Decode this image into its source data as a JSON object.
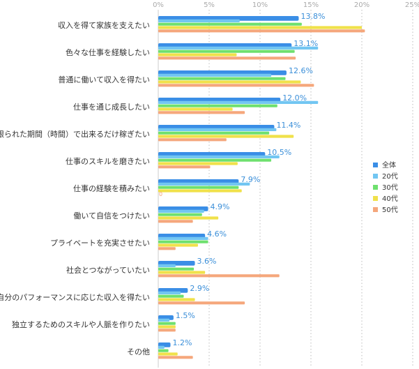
{
  "chart_data": {
    "type": "bar",
    "orientation": "horizontal",
    "xlim": [
      0,
      25
    ],
    "x_ticks": [
      "0%",
      "5%",
      "10%",
      "15%",
      "20%",
      "25%"
    ],
    "x_tick_values": [
      0,
      5,
      10,
      15,
      20,
      25
    ],
    "legend_position": "right",
    "categories": [
      "収入を得て家族を支えたい",
      "色々な仕事を経験したい",
      "普通に働いて収入を得たい",
      "仕事を通じ成長したい",
      "限られた期間（時間）で出来るだけ稼ぎたい",
      "仕事のスキルを磨きたい",
      "仕事の経験を積みたい",
      "働いて自信をつけたい",
      "プライベートを充実させたい",
      "社会とつながっていたい",
      "自分のパフォーマンスに応じた収入を得たい",
      "独立するためのスキルや人脈を作りたい",
      "その他"
    ],
    "series": [
      {
        "name": "全体",
        "color": "#3a8ee6",
        "values": [
          13.8,
          13.1,
          12.6,
          12.0,
          11.4,
          10.5,
          7.9,
          4.9,
          4.6,
          3.6,
          2.9,
          1.5,
          1.2
        ]
      },
      {
        "name": "20代",
        "color": "#72c6f2",
        "values": [
          8.0,
          15.7,
          11.1,
          15.7,
          11.6,
          11.9,
          9.0,
          4.5,
          4.9,
          1.7,
          2.2,
          1.1,
          0.6
        ]
      },
      {
        "name": "30代",
        "color": "#6ee06e",
        "values": [
          14.1,
          13.4,
          12.5,
          11.7,
          10.9,
          11.1,
          7.9,
          4.3,
          4.9,
          3.5,
          2.5,
          1.7,
          1.0
        ]
      },
      {
        "name": "40代",
        "color": "#f0e14a",
        "values": [
          20.0,
          7.7,
          14.0,
          7.3,
          13.3,
          7.8,
          8.2,
          5.9,
          3.9,
          4.6,
          3.6,
          1.7,
          1.9
        ]
      },
      {
        "name": "50代",
        "color": "#f5a77c",
        "values": [
          20.3,
          13.5,
          15.3,
          8.5,
          6.7,
          5.1,
          0,
          3.4,
          1.7,
          11.9,
          8.5,
          1.7,
          3.4
        ]
      }
    ],
    "data_labels": [
      "13.8%",
      "13.1%",
      "12.6%",
      "12.0%",
      "11.4%",
      "10.5%",
      "7.9%",
      "4.9%",
      "4.6%",
      "3.6%",
      "2.9%",
      "1.5%",
      "1.2%"
    ],
    "zero_label": "0"
  }
}
